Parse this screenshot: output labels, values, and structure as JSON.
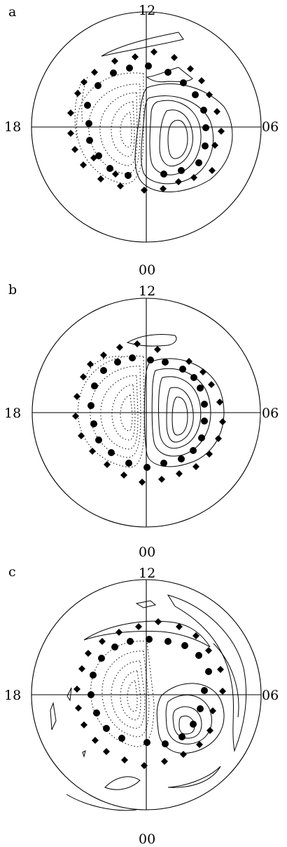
{
  "panels": [
    {
      "letter": "a",
      "top": "12",
      "bottom": "00",
      "left": "18",
      "right": "06"
    },
    {
      "letter": "b",
      "top": "12",
      "bottom": "00",
      "left": "18",
      "right": "06"
    },
    {
      "letter": "c",
      "top": "12",
      "bottom": "00",
      "left": "18",
      "right": "06"
    }
  ]
}
